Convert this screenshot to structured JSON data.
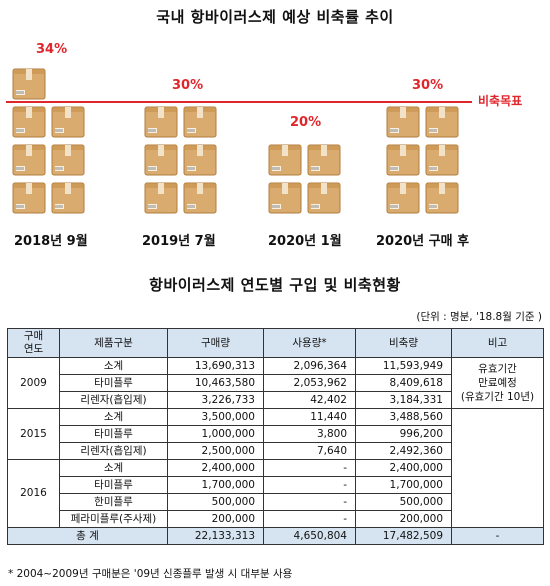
{
  "chart": {
    "title": "국내 항바이러스제 예상 비축률 추이",
    "target_label": "비축목표",
    "groups": [
      {
        "date": "2018년 9월",
        "percent": "34%",
        "boxes": 7
      },
      {
        "date": "2019년 7월",
        "percent": "30%",
        "boxes": 6
      },
      {
        "date": "2020년 1월",
        "percent": "20%",
        "boxes": 4
      },
      {
        "date": "2020년 구매 후",
        "percent": "30%",
        "boxes": 6
      }
    ],
    "colors": {
      "accent": "#e0262c",
      "box": "#d9ab6e"
    }
  },
  "table": {
    "title": "항바이러스제 연도별 구입 및 비축현황",
    "unit": "(단위 : 명분, '18.8월 기준 )",
    "headers": {
      "year": "구매\n연도",
      "category": "제품구분",
      "purchase": "구매량",
      "usage": "사용량*",
      "stock": "비축량",
      "note": "비고"
    },
    "groups": [
      {
        "year": "2009",
        "note": "유효기간\n만료예정\n(유효기간 10년)",
        "rows": [
          {
            "category": "소계",
            "purchase": "13,690,313",
            "usage": "2,096,364",
            "stock": "11,593,949"
          },
          {
            "category": "타미플루",
            "purchase": "10,463,580",
            "usage": "2,053,962",
            "stock": "8,409,618"
          },
          {
            "category": "리렌자(흡입제)",
            "purchase": "3,226,733",
            "usage": "42,402",
            "stock": "3,184,331"
          }
        ]
      },
      {
        "year": "2015",
        "note": "",
        "rows": [
          {
            "category": "소계",
            "purchase": "3,500,000",
            "usage": "11,440",
            "stock": "3,488,560"
          },
          {
            "category": "타미플루",
            "purchase": "1,000,000",
            "usage": "3,800",
            "stock": "996,200"
          },
          {
            "category": "리렌자(흡입제)",
            "purchase": "2,500,000",
            "usage": "7,640",
            "stock": "2,492,360"
          }
        ]
      },
      {
        "year": "2016",
        "note": "",
        "rows": [
          {
            "category": "소계",
            "purchase": "2,400,000",
            "usage": "-",
            "stock": "2,400,000"
          },
          {
            "category": "타미플루",
            "purchase": "1,700,000",
            "usage": "-",
            "stock": "1,700,000"
          },
          {
            "category": "한미플루",
            "purchase": "500,000",
            "usage": "-",
            "stock": "500,000"
          },
          {
            "category": "페라미플루(주사제)",
            "purchase": "200,000",
            "usage": "-",
            "stock": "200,000"
          }
        ]
      }
    ],
    "total": {
      "label": "총  계",
      "purchase": "22,133,313",
      "usage": "4,650,804",
      "stock": "17,482,509",
      "note": "-"
    }
  },
  "footnote": "* 2004~2009년 구매분은 '09년 신종플루 발생 시 대부분 사용"
}
